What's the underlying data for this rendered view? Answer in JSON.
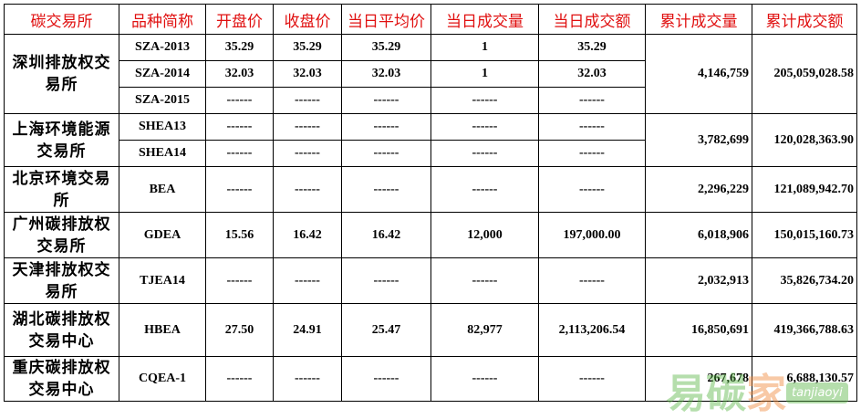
{
  "headers": [
    "碳交易所",
    "品种简称",
    "开盘价",
    "收盘价",
    "当日平均价",
    "当日成交量",
    "当日成交额",
    "累计成交量",
    "累计成交额"
  ],
  "exchanges": [
    {
      "name": "深圳排放权交易所",
      "cum_volume": "4,146,759",
      "cum_amount": "205,059,028.58",
      "products": [
        {
          "code": "SZA-2013",
          "open": "35.29",
          "close": "35.29",
          "avg": "35.29",
          "volume": "1",
          "amount": "35.29"
        },
        {
          "code": "SZA-2014",
          "open": "32.03",
          "close": "32.03",
          "avg": "32.03",
          "volume": "1",
          "amount": "32.03"
        },
        {
          "code": "SZA-2015",
          "open": "------",
          "close": "------",
          "avg": "------",
          "volume": "------",
          "amount": "------"
        }
      ]
    },
    {
      "name": "上海环境能源交易所",
      "cum_volume": "3,782,699",
      "cum_amount": "120,028,363.90",
      "products": [
        {
          "code": "SHEA13",
          "open": "------",
          "close": "------",
          "avg": "------",
          "volume": "------",
          "amount": "------"
        },
        {
          "code": "SHEA14",
          "open": "------",
          "close": "------",
          "avg": "------",
          "volume": "------",
          "amount": "------"
        }
      ]
    },
    {
      "name": "北京环境交易所",
      "cum_volume": "2,296,229",
      "cum_amount": "121,089,942.70",
      "products": [
        {
          "code": "BEA",
          "open": "------",
          "close": "------",
          "avg": "------",
          "volume": "------",
          "amount": "------"
        }
      ]
    },
    {
      "name": "广州碳排放权交易所",
      "cum_volume": "6,018,906",
      "cum_amount": "150,015,160.73",
      "products": [
        {
          "code": "GDEA",
          "open": "15.56",
          "close": "16.42",
          "avg": "16.42",
          "volume": "12,000",
          "amount": "197,000.00"
        }
      ]
    },
    {
      "name": "天津排放权交易所",
      "cum_volume": "2,032,913",
      "cum_amount": "35,826,734.20",
      "products": [
        {
          "code": "TJEA14",
          "open": "------",
          "close": "------",
          "avg": "------",
          "volume": "------",
          "amount": "------"
        }
      ]
    },
    {
      "name": "湖北碳排放权交易中心",
      "cum_volume": "16,850,691",
      "cum_amount": "419,366,788.63",
      "products": [
        {
          "code": "HBEA",
          "open": "27.50",
          "close": "24.91",
          "avg": "25.47",
          "volume": "82,977",
          "amount": "2,113,206.54"
        }
      ]
    },
    {
      "name": "重庆碳排放权交易中心",
      "cum_volume": "267,678",
      "cum_amount": "6,688,130.57",
      "products": [
        {
          "code": "CQEA-1",
          "open": "------",
          "close": "------",
          "avg": "------",
          "volume": "------",
          "amount": "------"
        }
      ]
    }
  ],
  "watermark": {
    "brand": "易碳家",
    "domain": "tanjiaoyi .com"
  }
}
